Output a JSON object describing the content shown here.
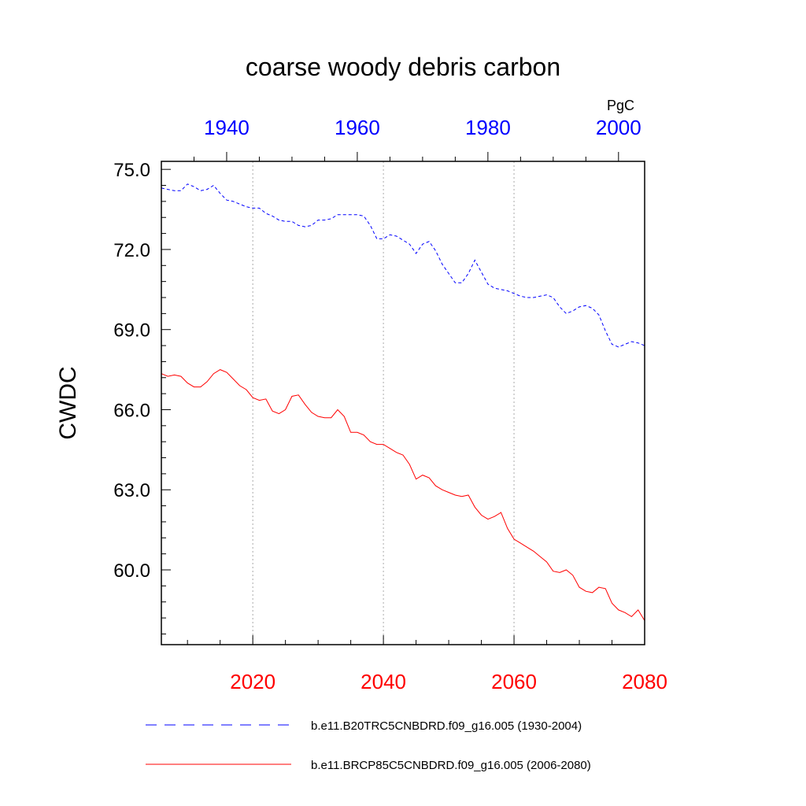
{
  "chart_data": {
    "type": "line",
    "title": "coarse woody debris carbon",
    "ylabel": "CWDC",
    "units": "PgC",
    "ylim": [
      57.2,
      75.3
    ],
    "yticks": [
      "60.0",
      "63.0",
      "66.0",
      "69.0",
      "72.0",
      "75.0"
    ],
    "grid": "vertical dotted lines at bottom-axis major ticks",
    "legend_position": "bottom",
    "x_bottom": {
      "range": [
        2006,
        2080
      ],
      "ticks": [
        "2020",
        "2040",
        "2060",
        "2080"
      ],
      "color": "#ff0000"
    },
    "x_top": {
      "range": [
        1930,
        2004
      ],
      "ticks": [
        "1940",
        "1960",
        "1980",
        "2000"
      ],
      "color": "#0000ff"
    },
    "series": [
      {
        "name": "b.e11.B20TRC5CNBDRD.f09_g16.005 (1930-2004)",
        "axis": "top",
        "color": "#0000ff",
        "style": "dashed",
        "x": [
          1930,
          1931,
          1932,
          1933,
          1934,
          1935,
          1936,
          1937,
          1938,
          1939,
          1940,
          1941,
          1942,
          1943,
          1944,
          1945,
          1946,
          1947,
          1948,
          1949,
          1950,
          1951,
          1952,
          1953,
          1954,
          1955,
          1956,
          1957,
          1958,
          1959,
          1960,
          1961,
          1962,
          1963,
          1964,
          1965,
          1966,
          1967,
          1968,
          1969,
          1970,
          1971,
          1972,
          1973,
          1974,
          1975,
          1976,
          1977,
          1978,
          1979,
          1980,
          1981,
          1982,
          1983,
          1984,
          1985,
          1986,
          1987,
          1988,
          1989,
          1990,
          1991,
          1992,
          1993,
          1994,
          1995,
          1996,
          1997,
          1998,
          1999,
          2000,
          2001,
          2002,
          2003,
          2004
        ],
        "values": [
          74.3,
          74.25,
          74.2,
          74.2,
          74.45,
          74.35,
          74.2,
          74.25,
          74.4,
          74.1,
          73.85,
          73.8,
          73.7,
          73.6,
          73.55,
          73.55,
          73.35,
          73.25,
          73.1,
          73.05,
          73.05,
          72.9,
          72.85,
          72.9,
          73.1,
          73.1,
          73.15,
          73.3,
          73.3,
          73.3,
          73.3,
          73.25,
          72.9,
          72.4,
          72.4,
          72.55,
          72.5,
          72.35,
          72.2,
          71.85,
          72.2,
          72.3,
          71.95,
          71.45,
          71.1,
          70.75,
          70.75,
          71.1,
          71.6,
          71.15,
          70.7,
          70.55,
          70.5,
          70.45,
          70.35,
          70.25,
          70.2,
          70.2,
          70.25,
          70.3,
          70.2,
          69.85,
          69.6,
          69.7,
          69.85,
          69.9,
          69.8,
          69.55,
          68.95,
          68.45,
          68.35,
          68.45,
          68.55,
          68.5,
          68.4
        ]
      },
      {
        "name": "b.e11.BRCP85C5CNBDRD.f09_g16.005 (2006-2080)",
        "axis": "bottom",
        "color": "#ff0000",
        "style": "solid",
        "x": [
          2006,
          2007,
          2008,
          2009,
          2010,
          2011,
          2012,
          2013,
          2014,
          2015,
          2016,
          2017,
          2018,
          2019,
          2020,
          2021,
          2022,
          2023,
          2024,
          2025,
          2026,
          2027,
          2028,
          2029,
          2030,
          2031,
          2032,
          2033,
          2034,
          2035,
          2036,
          2037,
          2038,
          2039,
          2040,
          2041,
          2042,
          2043,
          2044,
          2045,
          2046,
          2047,
          2048,
          2049,
          2050,
          2051,
          2052,
          2053,
          2054,
          2055,
          2056,
          2057,
          2058,
          2059,
          2060,
          2061,
          2062,
          2063,
          2064,
          2065,
          2066,
          2067,
          2068,
          2069,
          2070,
          2071,
          2072,
          2073,
          2074,
          2075,
          2076,
          2077,
          2078,
          2079,
          2080
        ],
        "values": [
          67.35,
          67.25,
          67.3,
          67.25,
          67.0,
          66.85,
          66.85,
          67.05,
          67.35,
          67.5,
          67.4,
          67.15,
          66.9,
          66.75,
          66.45,
          66.35,
          66.4,
          65.95,
          65.85,
          66.0,
          66.5,
          66.55,
          66.2,
          65.9,
          65.75,
          65.7,
          65.7,
          66.0,
          65.75,
          65.15,
          65.15,
          65.05,
          64.8,
          64.7,
          64.7,
          64.55,
          64.4,
          64.3,
          63.95,
          63.4,
          63.55,
          63.45,
          63.15,
          63.0,
          62.9,
          62.8,
          62.75,
          62.8,
          62.35,
          62.05,
          61.9,
          62.0,
          62.15,
          61.55,
          61.15,
          61.0,
          60.85,
          60.7,
          60.5,
          60.3,
          59.95,
          59.9,
          60.0,
          59.8,
          59.35,
          59.2,
          59.15,
          59.35,
          59.3,
          58.75,
          58.5,
          58.4,
          58.25,
          58.5,
          58.1
        ]
      }
    ]
  }
}
